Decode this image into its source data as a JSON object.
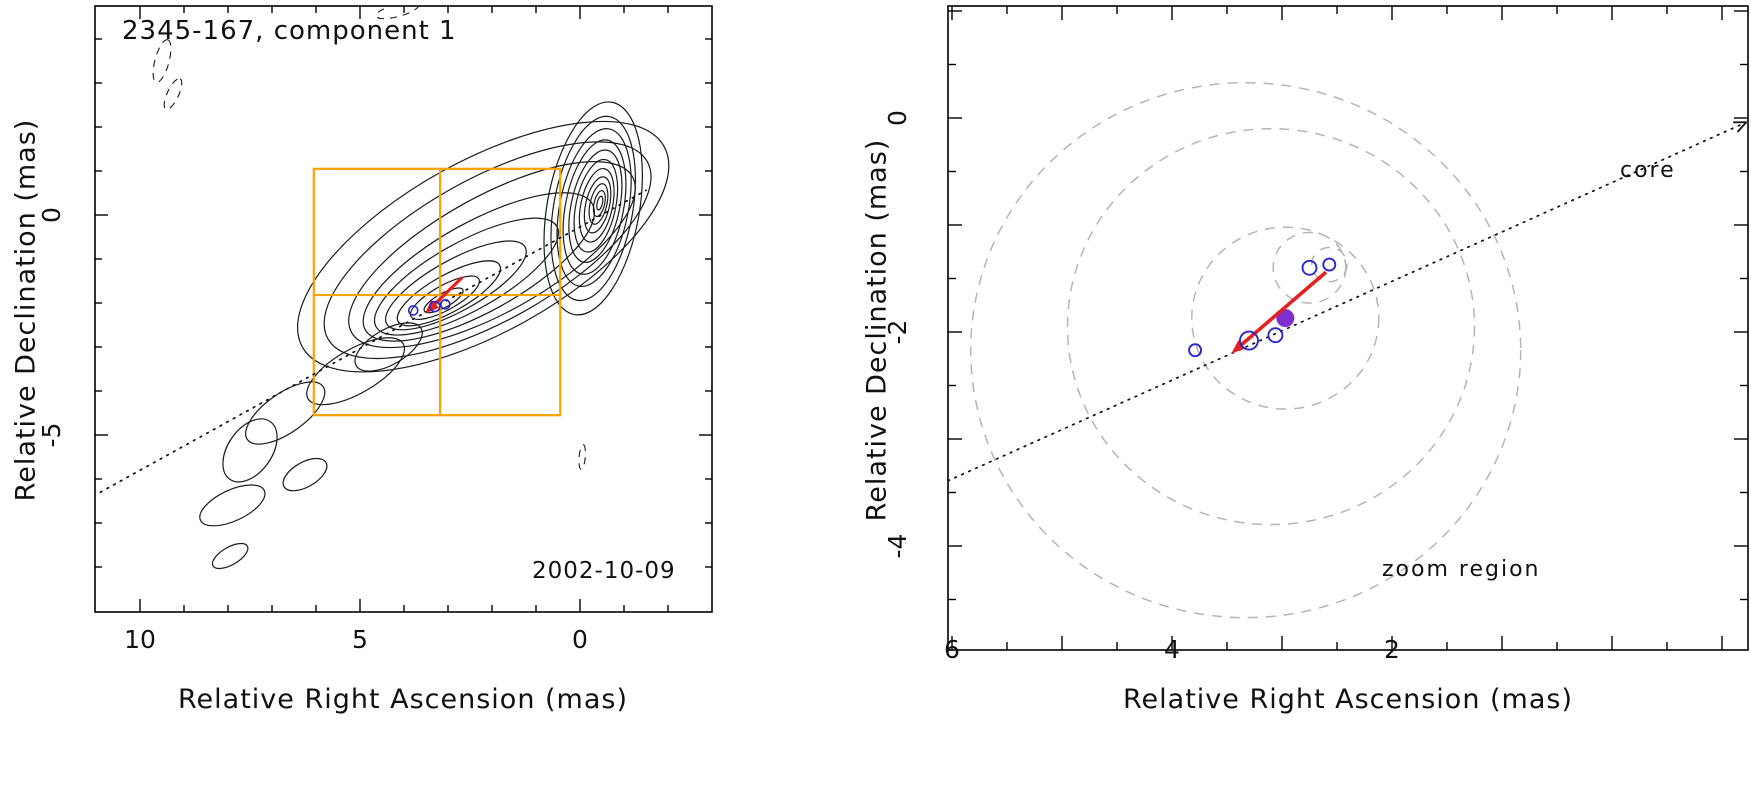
{
  "figure": {
    "background": "#ffffff"
  },
  "colors": {
    "frame": "#000000",
    "contour": "#1a1a1a",
    "negative_contour": "#1a1a1a",
    "zoom_box": "#ffa200",
    "jet_line": "#111111",
    "velocity_arrow": "#e62020",
    "component_open": "#2929cc",
    "component_filled": "#7d2fd0",
    "size_circle_dashed": "#b5b5b5"
  },
  "left_panel": {
    "title": "2345-167, component 1",
    "date_label": "2002-10-09",
    "xlabel": "Relative Right Ascension (mas)",
    "ylabel": "Relative Declination (mas)"
  },
  "right_panel": {
    "xlabel": "Relative Right Ascension (mas)",
    "ylabel": "Relative Declination (mas)",
    "core_label": "core",
    "zoom_label": "zoom region"
  },
  "chart_data": [
    {
      "id": "left",
      "type": "contour_map",
      "title": "2345-167, component 1",
      "epoch": "2002-10-09",
      "xlabel": "Relative Right Ascension (mas)",
      "ylabel": "Relative Declination (mas)",
      "x_range": [
        11.0,
        -3.0
      ],
      "y_range": [
        -9.0,
        4.75
      ],
      "x_label_ticks": [
        10,
        5,
        0
      ],
      "x_minor_ticks": [
        9,
        8,
        7,
        6,
        4,
        3,
        2,
        1,
        -1,
        -2
      ],
      "y_label_ticks": [
        0,
        -5
      ],
      "y_minor_ticks": [
        4,
        3,
        2,
        1,
        -1,
        -2,
        -3,
        -4,
        -6,
        -7,
        -8
      ],
      "jet_axis": {
        "from": [
          10.9,
          -6.3
        ],
        "to": [
          -1.5,
          0.56
        ]
      },
      "zoom_box": {
        "ra_max": 6.05,
        "ra_min": 0.45,
        "dec_max": 1.05,
        "dec_min": -4.55
      },
      "box_dividers": {
        "ra": 3.18,
        "dec": -1.82
      },
      "components_open": [
        [
          3.79,
          -2.17,
          4.5
        ],
        [
          3.3,
          -2.08,
          5.0
        ],
        [
          3.06,
          -2.03,
          4.5
        ]
      ],
      "velocity_arrow": {
        "from": [
          2.68,
          -1.42
        ],
        "to": [
          3.52,
          -2.24
        ]
      },
      "contours_solid": [
        [
          2.2,
          -0.72,
          4.7,
          1.95,
          -29
        ],
        [
          2.1,
          -0.8,
          4.15,
          1.62,
          -29
        ],
        [
          2.0,
          -0.9,
          3.65,
          1.32,
          -29
        ],
        [
          2.3,
          -1.18,
          2.95,
          1.02,
          -29
        ],
        [
          2.58,
          -1.4,
          2.35,
          0.78,
          -29
        ],
        [
          2.82,
          -1.6,
          1.8,
          0.58,
          -29
        ],
        [
          2.98,
          -1.78,
          1.32,
          0.42,
          -29
        ],
        [
          3.07,
          -1.88,
          0.88,
          0.28,
          -29
        ],
        [
          3.1,
          -1.94,
          0.5,
          0.16,
          -29
        ],
        [
          -0.3,
          0.15,
          2.45,
          1.05,
          -80
        ],
        [
          -0.3,
          0.15,
          2.12,
          0.9,
          -80
        ],
        [
          -0.32,
          0.17,
          1.82,
          0.78,
          -79
        ],
        [
          -0.33,
          0.18,
          1.55,
          0.66,
          -79
        ],
        [
          -0.35,
          0.2,
          1.3,
          0.55,
          -78
        ],
        [
          -0.36,
          0.21,
          1.07,
          0.45,
          -78
        ],
        [
          -0.38,
          0.22,
          0.85,
          0.36,
          -78
        ],
        [
          -0.4,
          0.23,
          0.65,
          0.27,
          -77
        ],
        [
          -0.42,
          0.25,
          0.47,
          0.19,
          -77
        ],
        [
          -0.44,
          0.26,
          0.3,
          0.12,
          -77
        ],
        [
          -0.45,
          0.27,
          0.16,
          0.06,
          -77
        ],
        [
          6.7,
          -4.5,
          1.05,
          0.45,
          -35
        ],
        [
          7.5,
          -5.35,
          0.8,
          0.5,
          -55
        ],
        [
          7.9,
          -6.6,
          0.8,
          0.35,
          -25
        ],
        [
          6.25,
          -5.9,
          0.55,
          0.28,
          -30
        ],
        [
          5.1,
          -3.55,
          1.25,
          0.5,
          -30
        ],
        [
          4.35,
          -3.0,
          0.85,
          0.4,
          -30
        ],
        [
          7.95,
          -7.75,
          0.45,
          0.2,
          -30
        ]
      ],
      "contours_dashed": [
        [
          9.5,
          3.5,
          0.5,
          0.16,
          -75
        ],
        [
          9.25,
          2.75,
          0.38,
          0.13,
          -65
        ],
        [
          4.15,
          4.65,
          0.5,
          0.14,
          -15
        ],
        [
          -0.05,
          -5.5,
          0.28,
          0.07,
          -85
        ]
      ]
    },
    {
      "id": "right",
      "type": "scatter",
      "xlabel": "Relative Right Ascension (mas)",
      "ylabel": "Relative Declination (mas)",
      "x_range": [
        6.05,
        -1.25
      ],
      "y_range": [
        -4.95,
        1.05
      ],
      "x_label_ticks": [
        6,
        4,
        2
      ],
      "x_major_unlabeled": [
        5,
        3,
        1,
        0,
        -1
      ],
      "x_minor_ticks": [
        5.5,
        4.5,
        3.5,
        2.5,
        1.5,
        0.5,
        -0.5
      ],
      "y_label_ticks": [
        0,
        -2,
        -4
      ],
      "y_major_unlabeled": [
        1,
        -1,
        -3
      ],
      "y_minor_ticks": [
        0.5,
        -0.5,
        -1.5,
        -2.5,
        -3.5,
        -4.5
      ],
      "jet_axis": {
        "from": [
          6.1,
          -3.42
        ],
        "to": [
          -1.22,
          -0.04
        ]
      },
      "core_label": "core",
      "zoom_label": "zoom region",
      "components_open": [
        [
          3.79,
          -2.17,
          6
        ],
        [
          3.3,
          -2.08,
          9
        ],
        [
          3.06,
          -2.03,
          7
        ],
        [
          2.75,
          -1.4,
          7
        ],
        [
          2.57,
          -1.37,
          6
        ]
      ],
      "component_filled": [
        2.97,
        -1.87,
        9
      ],
      "velocity_arrow": {
        "from": [
          2.6,
          -1.44
        ],
        "to": [
          3.46,
          -2.2
        ]
      },
      "size_circles": [
        [
          3.33,
          -2.17,
          2.5
        ],
        [
          3.1,
          -1.95,
          1.85
        ],
        [
          2.97,
          -1.87,
          0.85
        ],
        [
          2.75,
          -1.4,
          0.33
        ],
        [
          2.57,
          -1.37,
          0.16
        ]
      ]
    }
  ]
}
